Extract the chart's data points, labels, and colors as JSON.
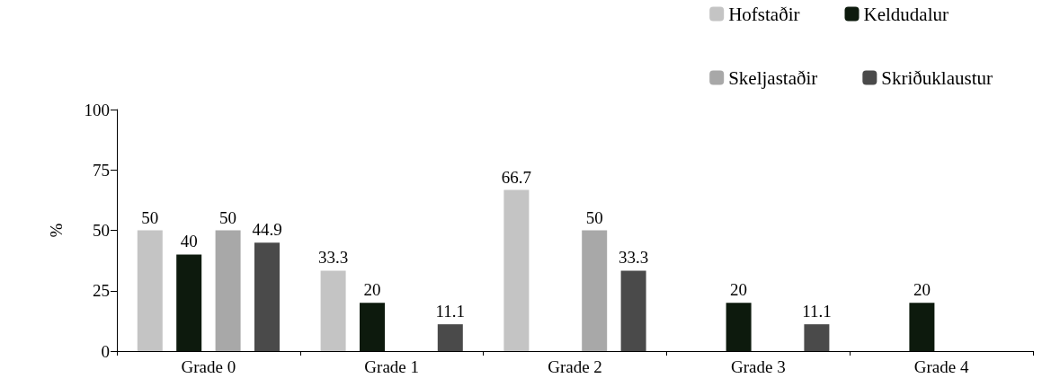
{
  "chart_data": {
    "type": "bar",
    "ylabel": "%",
    "categories": [
      "Grade 0",
      "Grade 1",
      "Grade 2",
      "Grade 3",
      "Grade 4"
    ],
    "series": [
      {
        "name": "Hofstaðir",
        "color": "#c4c4c4",
        "values": [
          50,
          33.3,
          66.7,
          0,
          0
        ],
        "value_labels": [
          "50",
          "33.3",
          "66.7",
          null,
          null
        ]
      },
      {
        "name": "Keldudalur",
        "color": "#0d1a0d",
        "values": [
          40,
          20,
          0,
          20,
          20
        ],
        "value_labels": [
          "40",
          "20",
          null,
          "20",
          "20"
        ]
      },
      {
        "name": "Skeljastaðir",
        "color": "#a8a8a8",
        "values": [
          50,
          0,
          50,
          0,
          0
        ],
        "value_labels": [
          "50",
          null,
          "50",
          null,
          null
        ]
      },
      {
        "name": "Skriðuklaustur",
        "color": "#4a4a4a",
        "values": [
          44.9,
          11.1,
          33.3,
          11.1,
          0
        ],
        "value_labels": [
          "44.9",
          "11.1",
          "33.3",
          "11.1",
          null
        ]
      }
    ],
    "ylim": [
      0,
      100
    ],
    "yticks": [
      0,
      25,
      50,
      75,
      100
    ],
    "grid": false,
    "legend": "top right"
  }
}
